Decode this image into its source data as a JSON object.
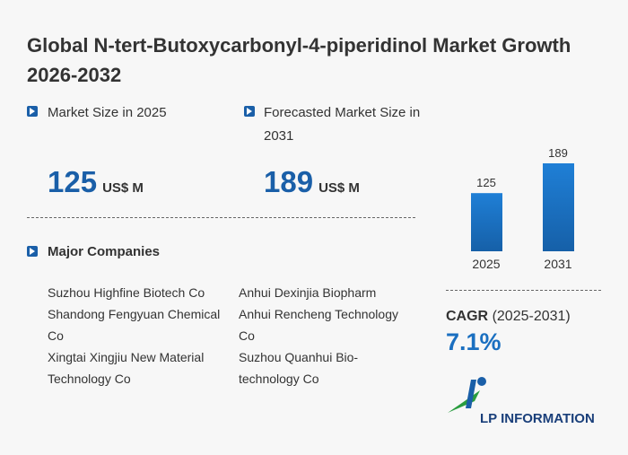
{
  "title": "Global N-tert-Butoxycarbonyl-4-piperidinol Market Growth 2026-2032",
  "market_size": {
    "label": "Market Size in 2025",
    "value": 125,
    "unit": "US$ M"
  },
  "forecast": {
    "label": "Forecasted Market Size in 2031",
    "value": 189,
    "unit": "US$ M"
  },
  "companies": {
    "heading": "Major Companies",
    "left": [
      "Suzhou Highfine Biotech Co",
      "Shandong Fengyuan Chemical Co",
      "Xingtai Xingjiu New Material Technology Co"
    ],
    "right": [
      "Anhui Dexinjia Biopharm",
      "Anhui Rencheng Technology Co",
      "Suzhou Quanhui Bio-technology Co"
    ]
  },
  "chart_data": {
    "type": "bar",
    "categories": [
      "2025",
      "2031"
    ],
    "values": [
      125,
      189
    ],
    "color": "#1f7fd6"
  },
  "cagr": {
    "label": "CAGR",
    "period": "(2025-2031)",
    "value": "7.1%"
  },
  "logo": "LP INFORMATION"
}
